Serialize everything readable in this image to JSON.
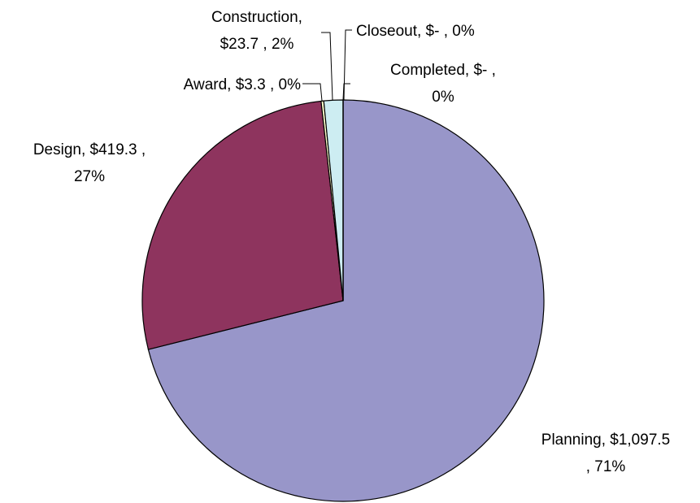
{
  "chart_data": {
    "type": "pie",
    "labels": [
      [
        "Planning,  $1,097.5",
        ", 71%"
      ],
      [
        "Design,  $419.3 ,",
        "27%"
      ],
      [
        "Award,  $3.3 , 0%"
      ],
      [
        "Construction,",
        "$23.7 , 2%"
      ],
      [
        "Closeout,  $-   , 0%"
      ],
      [
        "Completed,  $-   ,",
        "0%"
      ]
    ],
    "values": [
      1097.5,
      419.3,
      3.3,
      23.7,
      0,
      0
    ],
    "colors": [
      "#9896c9",
      "#8e345e",
      "#ffffcc",
      "#cdedf2",
      "#ffffff",
      "#ffffff"
    ]
  }
}
